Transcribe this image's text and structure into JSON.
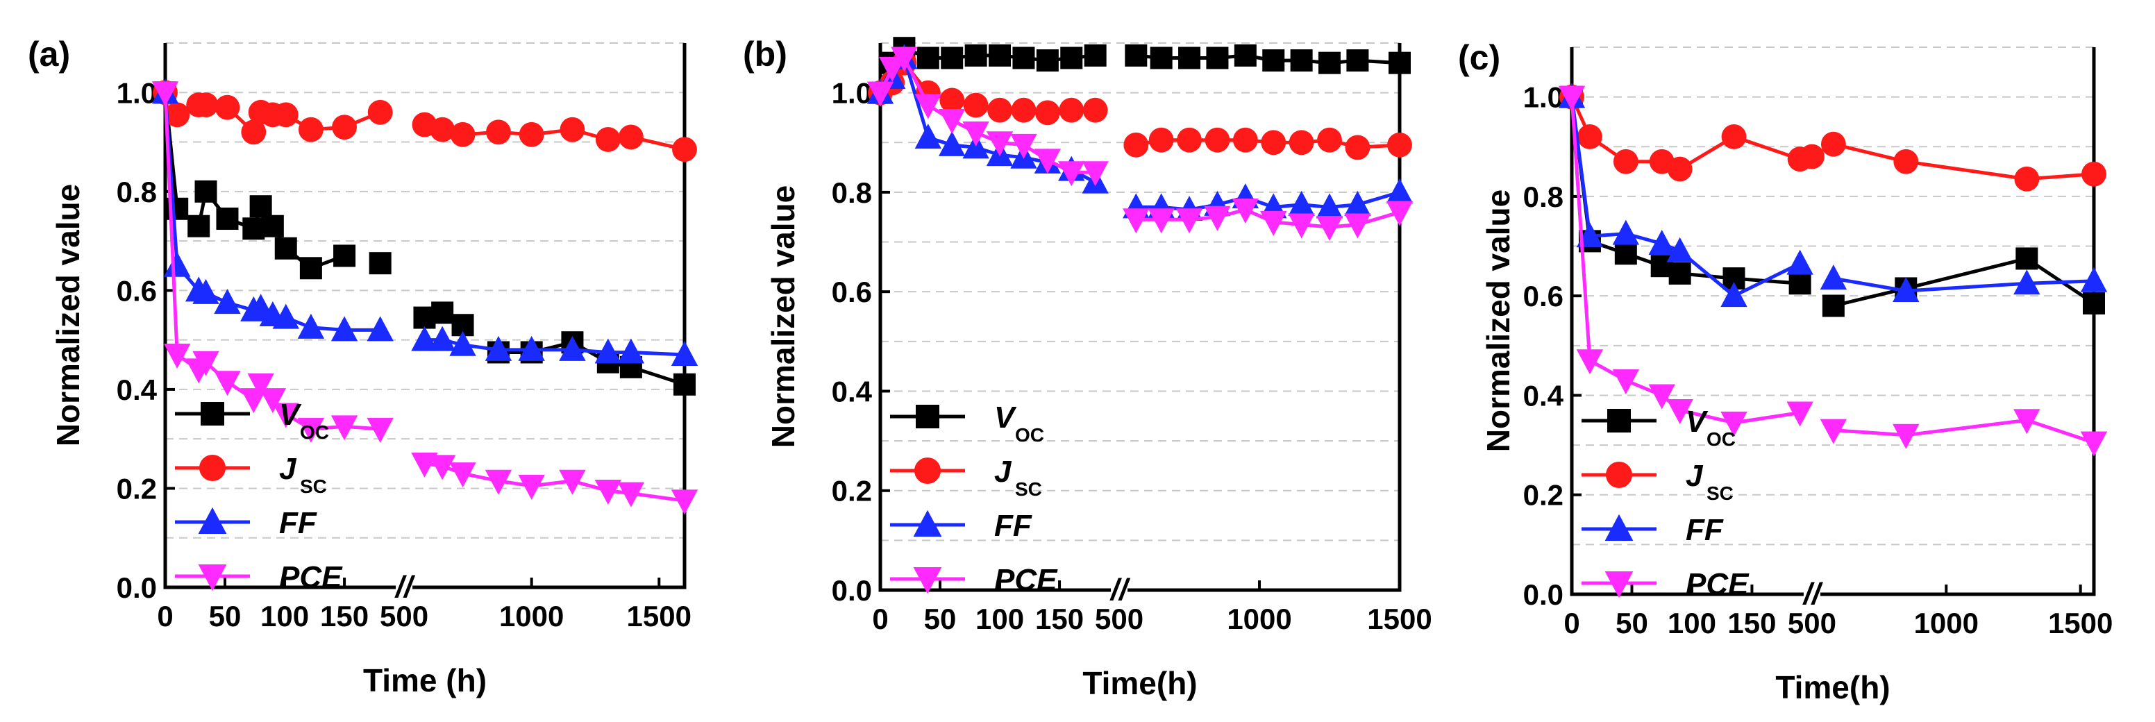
{
  "colors": {
    "voc": "#000000",
    "jsc": "#ff1a1a",
    "ff": "#1a2bff",
    "pce": "#ff2aff"
  },
  "chart_data": [
    {
      "type": "line",
      "panel_label": "(a)",
      "xlabel": "Time (h)",
      "ylabel": "Normalized value",
      "ylim": [
        0,
        1.1
      ],
      "yticks": [
        "0.0",
        "0.2",
        "0.4",
        "0.6",
        "0.8",
        "1.0"
      ],
      "xlim_left": [
        0,
        200
      ],
      "xlim_right": [
        500,
        1600
      ],
      "xticks_left": [
        "0",
        "50",
        "100",
        "150"
      ],
      "xticks_right": [
        "500",
        "1000",
        "1500"
      ],
      "break_mark": "//",
      "grid": true,
      "legend_position": "bottom-left",
      "series": [
        {
          "key": "voc",
          "name": "V",
          "name_sub": "OC",
          "segments": [
            {
              "x": [
                0,
                10,
                28,
                34,
                52,
                74,
                80,
                90,
                101,
                122,
                150
              ],
              "y": [
                1.0,
                0.765,
                0.73,
                0.8,
                0.745,
                0.725,
                0.77,
                0.73,
                0.685,
                0.645,
                0.67
              ]
            },
            {
              "x": [
                180
              ],
              "y": [
                0.655
              ]
            },
            {
              "x": [
                580,
                650,
                730
              ],
              "y": [
                0.545,
                0.555,
                0.53
              ]
            },
            {
              "x": [
                870,
                1000,
                1160,
                1300,
                1390,
                1600
              ],
              "y": [
                0.475,
                0.475,
                0.495,
                0.455,
                0.445,
                0.41
              ]
            }
          ]
        },
        {
          "key": "jsc",
          "name": "J",
          "name_sub": "SC",
          "segments": [
            {
              "x": [
                0,
                10,
                28,
                34,
                52,
                74,
                80,
                90,
                101,
                122,
                150,
                180
              ],
              "y": [
                1.0,
                0.955,
                0.975,
                0.975,
                0.97,
                0.92,
                0.96,
                0.955,
                0.955,
                0.925,
                0.93,
                0.96
              ]
            },
            {
              "x": [
                580,
                650,
                730,
                870,
                1000,
                1160,
                1300,
                1390,
                1600
              ],
              "y": [
                0.935,
                0.925,
                0.915,
                0.92,
                0.915,
                0.925,
                0.905,
                0.91,
                0.885
              ]
            }
          ]
        },
        {
          "key": "ff",
          "name": "FF",
          "segments": [
            {
              "x": [
                0,
                10,
                28,
                34,
                52,
                74,
                80,
                90,
                101,
                122,
                150,
                180
              ],
              "y": [
                1.0,
                0.65,
                0.6,
                0.595,
                0.575,
                0.56,
                0.565,
                0.55,
                0.545,
                0.525,
                0.52,
                0.52
              ]
            },
            {
              "x": [
                580,
                650,
                730,
                870,
                1000,
                1160,
                1300,
                1390,
                1600
              ],
              "y": [
                0.5,
                0.5,
                0.49,
                0.48,
                0.48,
                0.48,
                0.475,
                0.475,
                0.47
              ]
            }
          ]
        },
        {
          "key": "pce",
          "name": "PCE",
          "segments": [
            {
              "x": [
                0,
                10,
                28,
                34,
                52,
                74,
                80,
                90,
                101,
                122,
                150,
                180
              ],
              "y": [
                1.0,
                0.47,
                0.44,
                0.455,
                0.415,
                0.38,
                0.41,
                0.38,
                0.35,
                0.32,
                0.325,
                0.32
              ]
            },
            {
              "x": [
                580,
                650,
                730,
                870,
                1000,
                1160,
                1300,
                1390,
                1600
              ],
              "y": [
                0.25,
                0.245,
                0.23,
                0.215,
                0.205,
                0.215,
                0.195,
                0.19,
                0.175
              ]
            }
          ]
        }
      ]
    },
    {
      "type": "line",
      "panel_label": "(b)",
      "xlabel": "Time(h)",
      "ylabel": "Normalized value",
      "ylim": [
        0,
        1.1
      ],
      "yticks": [
        "0.0",
        "0.2",
        "0.4",
        "0.6",
        "0.8",
        "1.0"
      ],
      "xlim_left": [
        0,
        200
      ],
      "xlim_right": [
        500,
        1500
      ],
      "xticks_left": [
        "0",
        "50",
        "100",
        "150"
      ],
      "xticks_right": [
        "500",
        "1000",
        "1500"
      ],
      "break_mark": "//",
      "grid": true,
      "legend_position": "bottom-left",
      "series": [
        {
          "key": "voc",
          "name": "V",
          "name_sub": "OC",
          "segments": [
            {
              "x": [
                0,
                10,
                20,
                40,
                60,
                80,
                100,
                120,
                140,
                160,
                180
              ],
              "y": [
                1.0,
                1.06,
                1.09,
                1.07,
                1.07,
                1.075,
                1.075,
                1.07,
                1.065,
                1.07,
                1.075
              ]
            },
            {
              "x": [
                560,
                650,
                750,
                850,
                950,
                1050,
                1150,
                1250,
                1350,
                1500
              ],
              "y": [
                1.075,
                1.07,
                1.07,
                1.07,
                1.075,
                1.065,
                1.065,
                1.06,
                1.065,
                1.06
              ]
            }
          ]
        },
        {
          "key": "jsc",
          "name": "J",
          "name_sub": "SC",
          "segments": [
            {
              "x": [
                0,
                10,
                20,
                40,
                60,
                80,
                100,
                120,
                140,
                160,
                180
              ],
              "y": [
                1.0,
                1.02,
                1.06,
                1.0,
                0.985,
                0.975,
                0.965,
                0.965,
                0.96,
                0.965,
                0.965
              ]
            },
            {
              "x": [
                560,
                650,
                750,
                850,
                950,
                1050,
                1150,
                1250,
                1350,
                1500
              ],
              "y": [
                0.895,
                0.905,
                0.905,
                0.905,
                0.905,
                0.9,
                0.9,
                0.905,
                0.89,
                0.895
              ]
            }
          ]
        },
        {
          "key": "ff",
          "name": "FF",
          "segments": [
            {
              "x": [
                0,
                10,
                20,
                40,
                60,
                80,
                100,
                120,
                140,
                160,
                180
              ],
              "y": [
                1.0,
                1.03,
                1.07,
                0.91,
                0.895,
                0.89,
                0.875,
                0.87,
                0.86,
                0.845,
                0.82
              ]
            },
            {
              "x": [
                560,
                650,
                750,
                850,
                950,
                1050,
                1150,
                1250,
                1350,
                1500
              ],
              "y": [
                0.77,
                0.77,
                0.765,
                0.775,
                0.79,
                0.77,
                0.775,
                0.77,
                0.775,
                0.8
              ]
            }
          ]
        },
        {
          "key": "pce",
          "name": "PCE",
          "segments": [
            {
              "x": [
                0,
                10,
                20,
                40,
                60,
                80,
                100,
                120,
                140,
                160,
                180
              ],
              "y": [
                1.0,
                1.05,
                1.07,
                0.975,
                0.945,
                0.92,
                0.9,
                0.895,
                0.865,
                0.84,
                0.84
              ]
            },
            {
              "x": [
                560,
                650,
                750,
                850,
                950,
                1050,
                1150,
                1250,
                1350,
                1500
              ],
              "y": [
                0.745,
                0.745,
                0.745,
                0.75,
                0.765,
                0.74,
                0.735,
                0.73,
                0.735,
                0.76
              ]
            }
          ]
        }
      ]
    },
    {
      "type": "line",
      "panel_label": "(c)",
      "xlabel": "Time(h)",
      "ylabel": "Normalized value",
      "ylim": [
        0,
        1.1
      ],
      "yticks": [
        "0.0",
        "0.2",
        "0.4",
        "0.6",
        "0.8",
        "1.0"
      ],
      "xlim_left": [
        0,
        200
      ],
      "xlim_right": [
        500,
        1550
      ],
      "xticks_left": [
        "0",
        "50",
        "100",
        "150"
      ],
      "xticks_right": [
        "500",
        "1000",
        "1500"
      ],
      "break_mark": "//",
      "grid": true,
      "legend_position": "bottom-left",
      "series": [
        {
          "key": "voc",
          "name": "V",
          "name_sub": "OC",
          "segments": [
            {
              "x": [
                0,
                15,
                45,
                75,
                90,
                135,
                190
              ],
              "y": [
                1.0,
                0.71,
                0.685,
                0.66,
                0.645,
                0.635,
                0.625
              ]
            },
            {
              "x": [
                580,
                850,
                1300,
                1550
              ],
              "y": [
                0.58,
                0.615,
                0.675,
                0.585
              ]
            }
          ]
        },
        {
          "key": "jsc",
          "name": "J",
          "name_sub": "SC",
          "segments": [
            {
              "x": [
                0,
                15,
                45,
                75,
                90,
                135,
                190
              ],
              "y": [
                1.0,
                0.92,
                0.87,
                0.87,
                0.855,
                0.92,
                0.875
              ]
            },
            {
              "x": [
                500,
                580,
                850,
                1300,
                1550
              ],
              "y": [
                0.88,
                0.905,
                0.87,
                0.835,
                0.845
              ]
            }
          ]
        },
        {
          "key": "ff",
          "name": "FF",
          "segments": [
            {
              "x": [
                0,
                15,
                45,
                75,
                90,
                135,
                190
              ],
              "y": [
                1.0,
                0.72,
                0.725,
                0.705,
                0.69,
                0.6,
                0.665
              ]
            },
            {
              "x": [
                580,
                850,
                1300,
                1550
              ],
              "y": [
                0.635,
                0.61,
                0.625,
                0.63
              ]
            }
          ]
        },
        {
          "key": "pce",
          "name": "PCE",
          "segments": [
            {
              "x": [
                0,
                15,
                45,
                75,
                90,
                135,
                190
              ],
              "y": [
                1.0,
                0.47,
                0.43,
                0.4,
                0.37,
                0.345,
                0.365
              ]
            },
            {
              "x": [
                580,
                850,
                1300,
                1550
              ],
              "y": [
                0.33,
                0.32,
                0.35,
                0.305
              ]
            }
          ]
        }
      ]
    }
  ]
}
